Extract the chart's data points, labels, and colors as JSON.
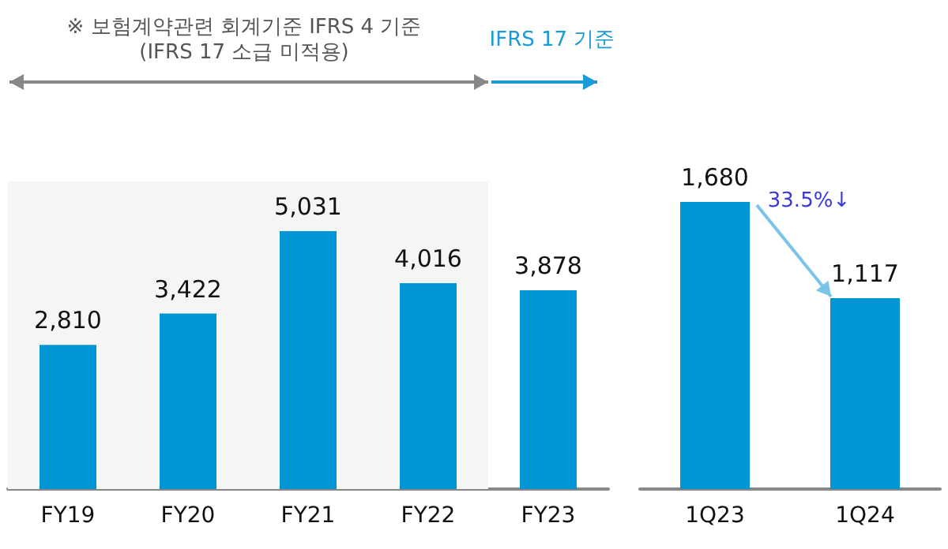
{
  "chart_data": [
    {
      "type": "bar",
      "categories": [
        "FY19",
        "FY20",
        "FY21",
        "FY22",
        "FY23"
      ],
      "values": [
        2810,
        3422,
        5031,
        4016,
        3878
      ],
      "value_labels": [
        "2,810",
        "3,422",
        "5,031",
        "4,016",
        "3,878"
      ],
      "color": "#0096d6",
      "grid": false,
      "bands": [
        {
          "axis": "x",
          "from": "FY19",
          "to": "FY22",
          "color": "#f5f5f5"
        }
      ],
      "annotations": [
        "※ 보험계약관련 회계기준 IFRS 4 기준\n(IFRS 17 소급 미적용)",
        "IFRS 17 기준"
      ]
    },
    {
      "type": "bar",
      "categories": [
        "1Q23",
        "1Q24"
      ],
      "values": [
        1680,
        1117
      ],
      "value_labels": [
        "1,680",
        "1,117"
      ],
      "color": "#0096d6",
      "grid": false,
      "annotations": [
        "33.5%↓"
      ]
    }
  ]
}
